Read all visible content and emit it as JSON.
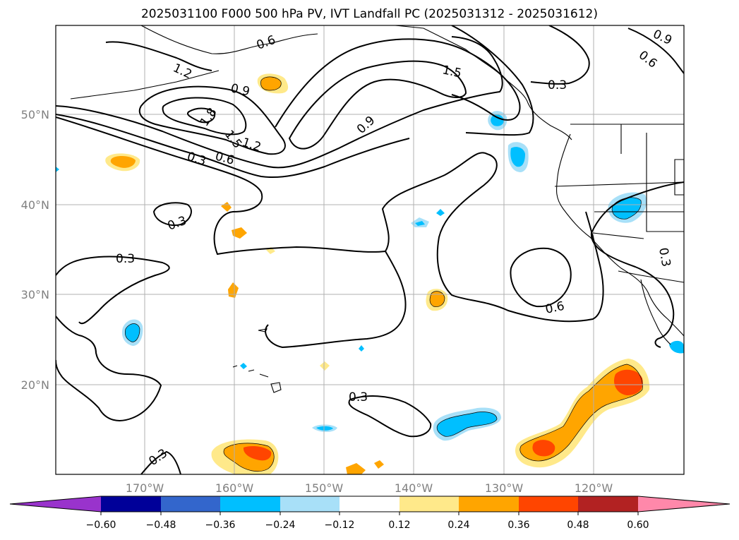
{
  "title": "2025031100 F000 500 hPa PV, IVT Landfall PC (2025031312 - 2025031612)",
  "map": {
    "lon_labels": [
      "170°W",
      "160°W",
      "150°W",
      "140°W",
      "130°W",
      "120°W"
    ],
    "lat_labels": [
      "50°N",
      "40°N",
      "30°N",
      "20°N"
    ],
    "contour_labels": [
      "1.2",
      "0.6",
      "0.9",
      "1.5",
      "0.3",
      "0.6",
      "0.9",
      "1.8",
      "1.5",
      "1.2",
      "0.3",
      "0.6",
      "0.3",
      "0.3",
      "0.6",
      "0.3",
      "0.3",
      "0.3",
      "0.9"
    ],
    "colors": {
      "contour": "#000000",
      "grid": "#b0b0b0"
    }
  },
  "colorbar": {
    "ticks": [
      "−0.60",
      "−0.48",
      "−0.36",
      "−0.24",
      "−0.12",
      "0.12",
      "0.24",
      "0.36",
      "0.48",
      "0.60"
    ],
    "colors": [
      "#9933cc",
      "#000099",
      "#3366cc",
      "#00bfff",
      "#a8e0f8",
      "#ffffff",
      "#ffe98a",
      "#ffa500",
      "#ff4500",
      "#b22222",
      "#ff88aa"
    ]
  }
}
